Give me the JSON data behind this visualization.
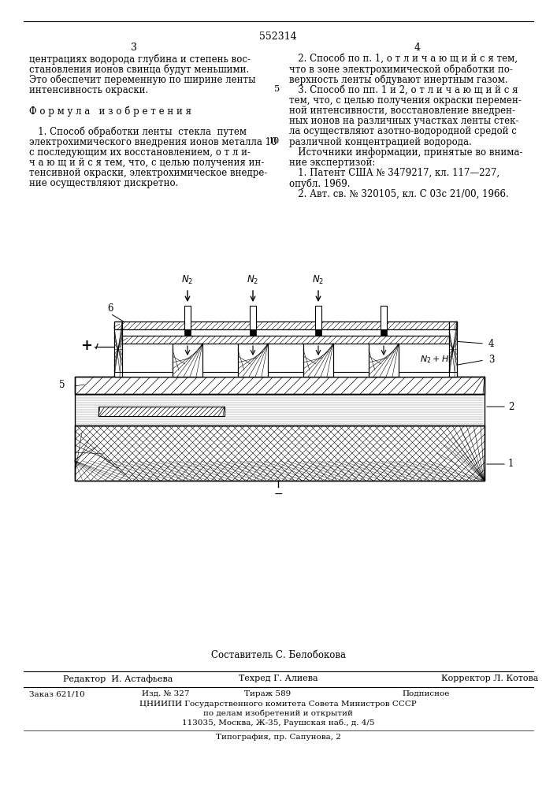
{
  "page_number": "552314",
  "col_left_num": "3",
  "col_right_num": "4",
  "col_left_text": [
    "центрациях водорода глубина и степень вос-",
    "становления ионов свинца будут меньшими.",
    "Это обеспечит переменную по ширине ленты",
    "интенсивность окраски.",
    "",
    "Ф о р м у л а   и з о б р е т е н и я",
    "",
    "   1. Способ обработки ленты  стекла  путем",
    "электрохимического внедрения ионов металла 10",
    "с последующим их восстановлением, о т л и-",
    "ч а ю щ и й с я тем, что, с целью получения ин-",
    "тенсивной окраски, электрохимическое внедре-",
    "ние осуществляют дискретно."
  ],
  "col_right_text": [
    "   2. Способ по п. 1, о т л и ч а ю щ и й с я тем,",
    "что в зоне электрохимической обработки по-",
    "верхность ленты обдувают инертным газом.",
    "   3. Способ по пп. 1 и 2, о т л и ч а ю щ и й с я",
    "тем, что, с целью получения окраски перемен-",
    "ной интенсивности, восстановление внедрен-",
    "ных ионов на различных участках ленты стек-",
    "ла осуществляют азотно-водородной средой с",
    "различной концентрацией водорода.",
    "   Источники информации, принятые во внима-",
    "ние экспертизой:",
    "   1. Патент США № 3479217, кл. 117—227,",
    "опубл. 1969.",
    "   2. Авт. св. № 320105, кл. С 03с 21/00, 1966."
  ],
  "line_number_5": "5",
  "line_number_10": "10",
  "footer_composer": "Составитель С. Белобокова",
  "footer_editor_label": "Редактор",
  "footer_editor": "И. Астафьева",
  "footer_tech_label": "Техред",
  "footer_tech": "Г. Алиева",
  "footer_corrector_label": "Корректор",
  "footer_corrector": "Л. Котова",
  "footer_order": "Заказ 621/10",
  "footer_izdanie": "Изд. № 327",
  "footer_tirazh": "Тираж 589",
  "footer_podpisnoe": "Подписное",
  "footer_org": "ЦНИИПИ Государственного комитета Совета Министров СССР",
  "footer_dept": "по делам изобретений и открытий",
  "footer_address": "113035, Москва, Ж-35, Раушская наб., д. 4/5",
  "footer_typography": "Типография, пр. Сапунова, 2",
  "bg_color": "#ffffff",
  "text_color": "#000000"
}
